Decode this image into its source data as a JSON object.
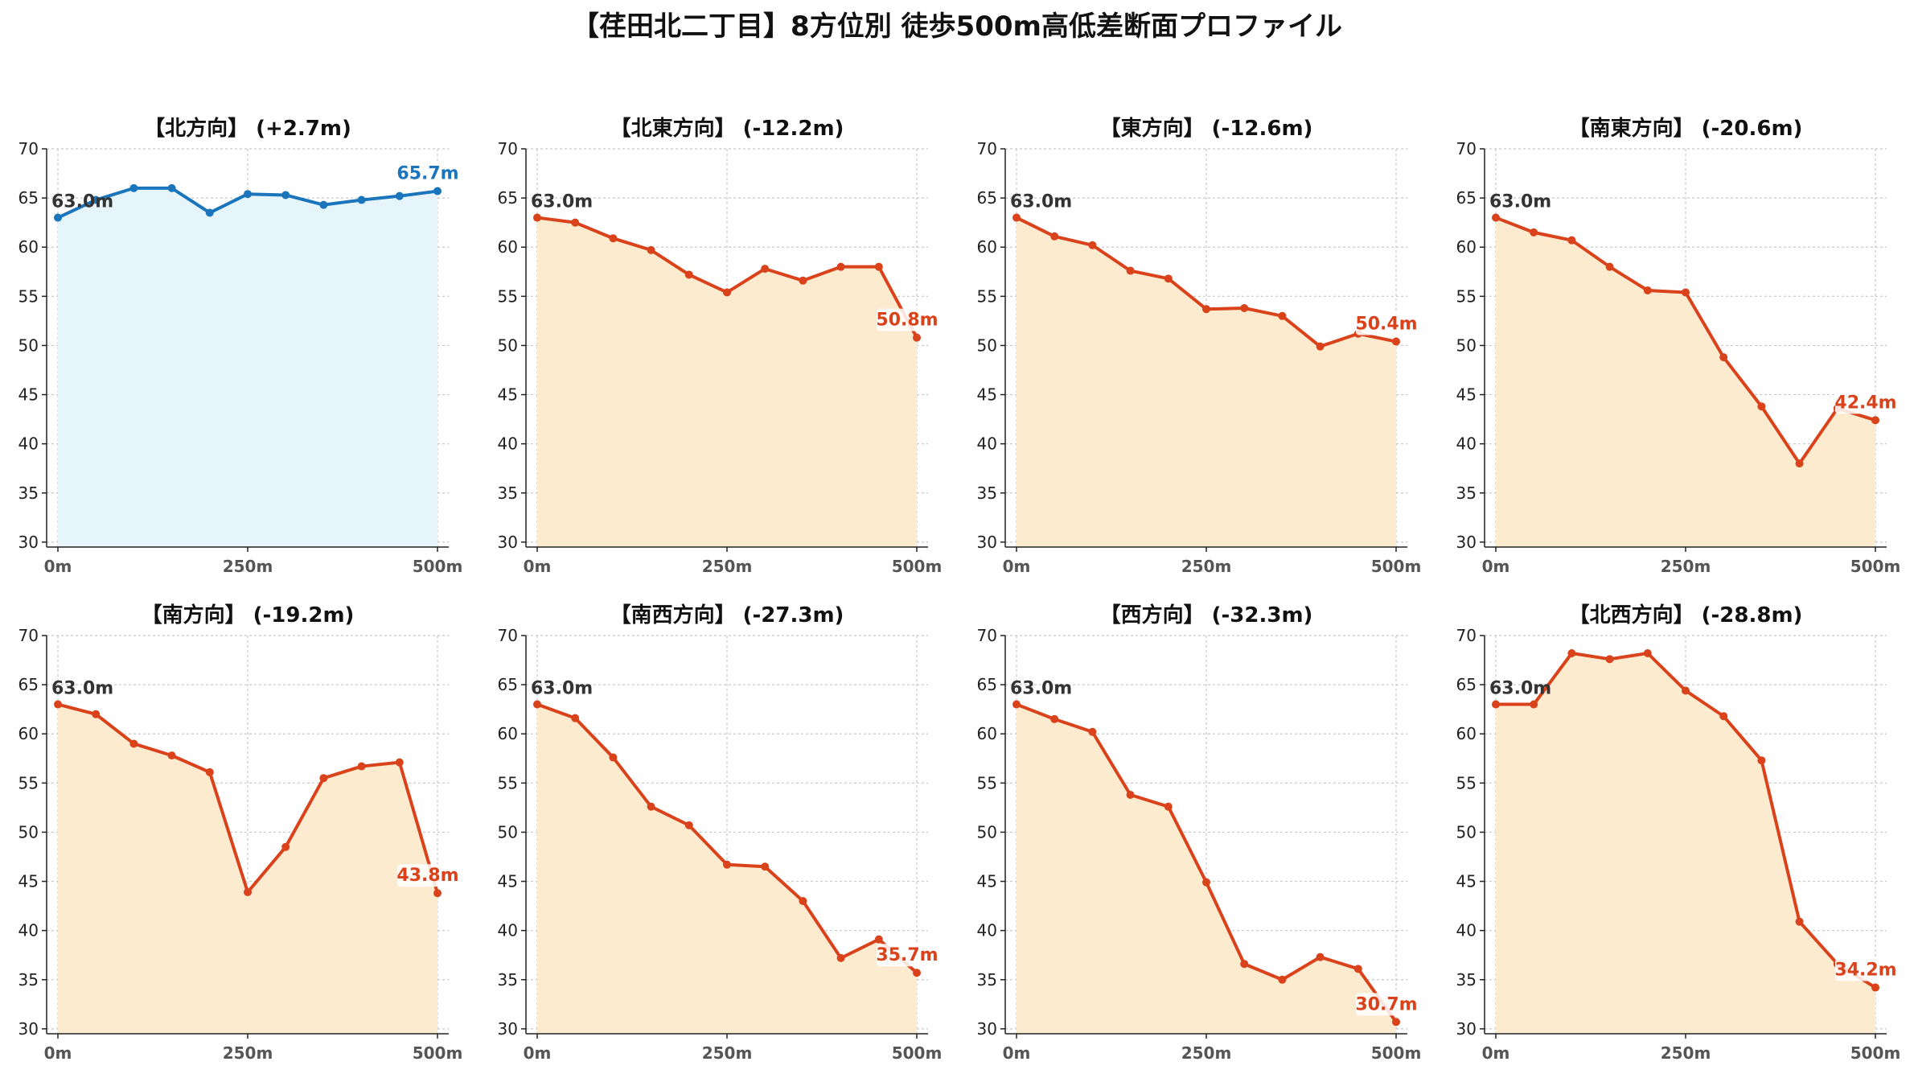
{
  "figure": {
    "title": "【荏田北二丁目】8方位別 徒歩500m高低差断面プロファイル"
  },
  "colors": {
    "up": "#1a75bc",
    "up_fill": "#e6f5fb",
    "down": "#d9421a",
    "down_fill": "#fdebd0",
    "start_label": "#333333",
    "grid": "#c8c8c8"
  },
  "chart_data": [
    {
      "type": "line",
      "title": "【北方向】 (+2.7m)",
      "trend": "up",
      "x": [
        0,
        50,
        100,
        150,
        200,
        250,
        300,
        350,
        400,
        450,
        500
      ],
      "values": [
        63.0,
        64.8,
        66.0,
        66.0,
        63.5,
        65.4,
        65.3,
        64.3,
        64.8,
        65.2,
        65.7
      ],
      "start_label": "63.0m",
      "end_label": "65.7m",
      "ylim": [
        29.5,
        70
      ],
      "yticks": [
        30,
        35,
        40,
        45,
        50,
        55,
        60,
        65,
        70
      ],
      "xticks": [
        0,
        250,
        500
      ],
      "xticklabels": [
        "0m",
        "250m",
        "500m"
      ],
      "grid": true
    },
    {
      "type": "line",
      "title": "【北東方向】 (-12.2m)",
      "trend": "down",
      "x": [
        0,
        50,
        100,
        150,
        200,
        250,
        300,
        350,
        400,
        450,
        500
      ],
      "values": [
        63.0,
        62.5,
        60.9,
        59.7,
        57.2,
        55.4,
        57.8,
        56.6,
        58.0,
        58.0,
        50.8
      ],
      "start_label": "63.0m",
      "end_label": "50.8m",
      "ylim": [
        29.5,
        70
      ],
      "yticks": [
        30,
        35,
        40,
        45,
        50,
        55,
        60,
        65,
        70
      ],
      "xticks": [
        0,
        250,
        500
      ],
      "xticklabels": [
        "0m",
        "250m",
        "500m"
      ],
      "grid": true
    },
    {
      "type": "line",
      "title": "【東方向】 (-12.6m)",
      "trend": "down",
      "x": [
        0,
        50,
        100,
        150,
        200,
        250,
        300,
        350,
        400,
        450,
        500
      ],
      "values": [
        63.0,
        61.1,
        60.2,
        57.6,
        56.8,
        53.7,
        53.8,
        53.0,
        49.9,
        51.2,
        50.4
      ],
      "start_label": "63.0m",
      "end_label": "50.4m",
      "ylim": [
        29.5,
        70
      ],
      "yticks": [
        30,
        35,
        40,
        45,
        50,
        55,
        60,
        65,
        70
      ],
      "xticks": [
        0,
        250,
        500
      ],
      "xticklabels": [
        "0m",
        "250m",
        "500m"
      ],
      "grid": true
    },
    {
      "type": "line",
      "title": "【南東方向】 (-20.6m)",
      "trend": "down",
      "x": [
        0,
        50,
        100,
        150,
        200,
        250,
        300,
        350,
        400,
        450,
        500
      ],
      "values": [
        63.0,
        61.5,
        60.7,
        58.0,
        55.6,
        55.4,
        48.8,
        43.8,
        38.0,
        43.6,
        42.4
      ],
      "start_label": "63.0m",
      "end_label": "42.4m",
      "ylim": [
        29.5,
        70
      ],
      "yticks": [
        30,
        35,
        40,
        45,
        50,
        55,
        60,
        65,
        70
      ],
      "xticks": [
        0,
        250,
        500
      ],
      "xticklabels": [
        "0m",
        "250m",
        "500m"
      ],
      "grid": true
    },
    {
      "type": "line",
      "title": "【南方向】 (-19.2m)",
      "trend": "down",
      "x": [
        0,
        50,
        100,
        150,
        200,
        250,
        300,
        350,
        400,
        450,
        500
      ],
      "values": [
        63.0,
        62.0,
        59.0,
        57.8,
        56.1,
        43.9,
        48.5,
        55.5,
        56.7,
        57.1,
        43.8
      ],
      "start_label": "63.0m",
      "end_label": "43.8m",
      "ylim": [
        29.5,
        70
      ],
      "yticks": [
        30,
        35,
        40,
        45,
        50,
        55,
        60,
        65,
        70
      ],
      "xticks": [
        0,
        250,
        500
      ],
      "xticklabels": [
        "0m",
        "250m",
        "500m"
      ],
      "grid": true
    },
    {
      "type": "line",
      "title": "【南西方向】 (-27.3m)",
      "trend": "down",
      "x": [
        0,
        50,
        100,
        150,
        200,
        250,
        300,
        350,
        400,
        450,
        500
      ],
      "values": [
        63.0,
        61.6,
        57.6,
        52.6,
        50.7,
        46.7,
        46.5,
        43.0,
        37.2,
        39.1,
        35.7
      ],
      "start_label": "63.0m",
      "end_label": "35.7m",
      "ylim": [
        29.5,
        70
      ],
      "yticks": [
        30,
        35,
        40,
        45,
        50,
        55,
        60,
        65,
        70
      ],
      "xticks": [
        0,
        250,
        500
      ],
      "xticklabels": [
        "0m",
        "250m",
        "500m"
      ],
      "grid": true
    },
    {
      "type": "line",
      "title": "【西方向】 (-32.3m)",
      "trend": "down",
      "x": [
        0,
        50,
        100,
        150,
        200,
        250,
        300,
        350,
        400,
        450,
        500
      ],
      "values": [
        63.0,
        61.5,
        60.2,
        53.8,
        52.6,
        44.9,
        36.6,
        35.0,
        37.3,
        36.1,
        30.7
      ],
      "start_label": "63.0m",
      "end_label": "30.7m",
      "ylim": [
        29.5,
        70
      ],
      "yticks": [
        30,
        35,
        40,
        45,
        50,
        55,
        60,
        65,
        70
      ],
      "xticks": [
        0,
        250,
        500
      ],
      "xticklabels": [
        "0m",
        "250m",
        "500m"
      ],
      "grid": true
    },
    {
      "type": "line",
      "title": "【北西方向】 (-28.8m)",
      "trend": "down",
      "x": [
        0,
        50,
        100,
        150,
        200,
        250,
        300,
        350,
        400,
        450,
        500
      ],
      "values": [
        63.0,
        63.0,
        68.2,
        67.6,
        68.2,
        64.4,
        61.8,
        57.3,
        40.9,
        36.6,
        34.2
      ],
      "start_label": "63.0m",
      "end_label": "34.2m",
      "ylim": [
        29.5,
        70
      ],
      "yticks": [
        30,
        35,
        40,
        45,
        50,
        55,
        60,
        65,
        70
      ],
      "xticks": [
        0,
        250,
        500
      ],
      "xticklabels": [
        "0m",
        "250m",
        "500m"
      ],
      "grid": true
    }
  ]
}
